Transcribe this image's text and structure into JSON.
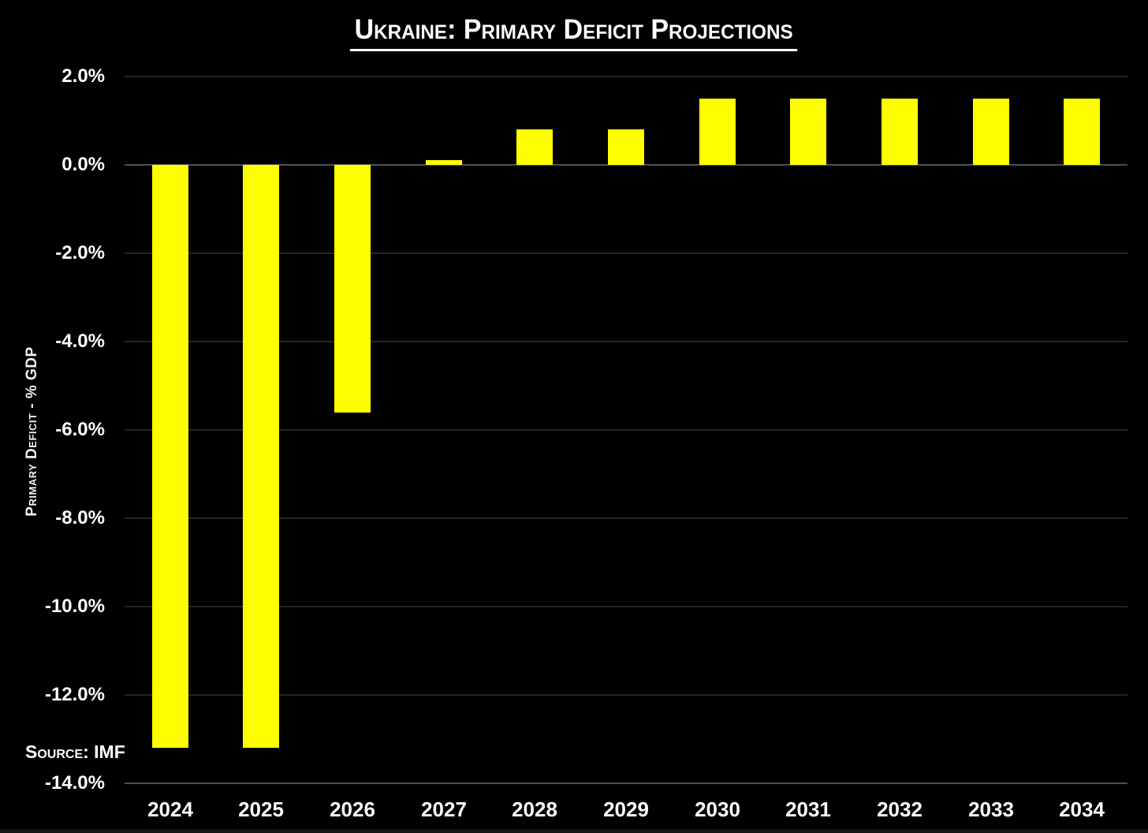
{
  "title": "Ukraine: Primary Deficit Projections",
  "source_label": "Source: IMF",
  "colors": {
    "background": "#000000",
    "bar": "#ffff00",
    "text": "#ffffff",
    "gridline": "#262626",
    "zero_line": "#4f4f4f",
    "base_line": "#4f4f4f"
  },
  "chart_data": {
    "type": "bar",
    "title": "Ukraine: Primary Deficit Projections",
    "xlabel": "",
    "ylabel": "Primary Deficit - % GDP",
    "categories": [
      "2024",
      "2025",
      "2026",
      "2027",
      "2028",
      "2029",
      "2030",
      "2031",
      "2032",
      "2033",
      "2034"
    ],
    "values": [
      -13.2,
      -13.2,
      -5.6,
      0.1,
      0.8,
      0.8,
      1.5,
      1.5,
      1.5,
      1.5,
      1.5
    ],
    "unit": "% of GDP",
    "ylim": [
      -14.0,
      2.0
    ],
    "yticks": [
      {
        "value": 2.0,
        "label": "2.0%"
      },
      {
        "value": 0.0,
        "label": "0.0%"
      },
      {
        "value": -2.0,
        "label": "-2.0%"
      },
      {
        "value": -4.0,
        "label": "-4.0%"
      },
      {
        "value": -6.0,
        "label": "-6.0%"
      },
      {
        "value": -8.0,
        "label": "-8.0%"
      },
      {
        "value": -10.0,
        "label": "-10.0%"
      },
      {
        "value": -12.0,
        "label": "-12.0%"
      },
      {
        "value": -14.0,
        "label": "-14.0%"
      }
    ],
    "grid": "horizontal",
    "legend_position": "none",
    "bar_color": "#ffff00",
    "source": "Source: IMF"
  }
}
